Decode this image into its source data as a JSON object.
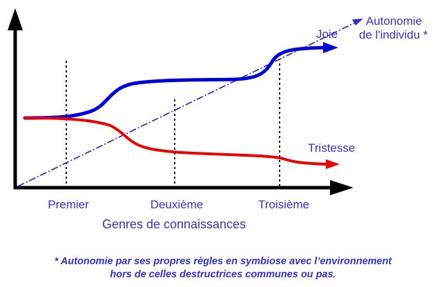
{
  "curves": {
    "joie_label": "Joie",
    "tristesse_label": "Tristesse",
    "autonomie_label_line1": "Autonomie",
    "autonomie_label_line2": "de l'individu *"
  },
  "x_axis": {
    "title": "Genres de connaissances",
    "ticks": [
      "Premier",
      "Deuxième",
      "Troisième"
    ]
  },
  "footnote": {
    "line1": "* Autonomie par ses propres règles en symbiose avec l’environnement",
    "line2": "hors de celles destructrices communes ou pas."
  },
  "colors": {
    "joie": "#0000dd",
    "tristesse": "#ee0000",
    "autonomie": "#3333cc",
    "text": "#3333cc",
    "axes": "#000000"
  }
}
